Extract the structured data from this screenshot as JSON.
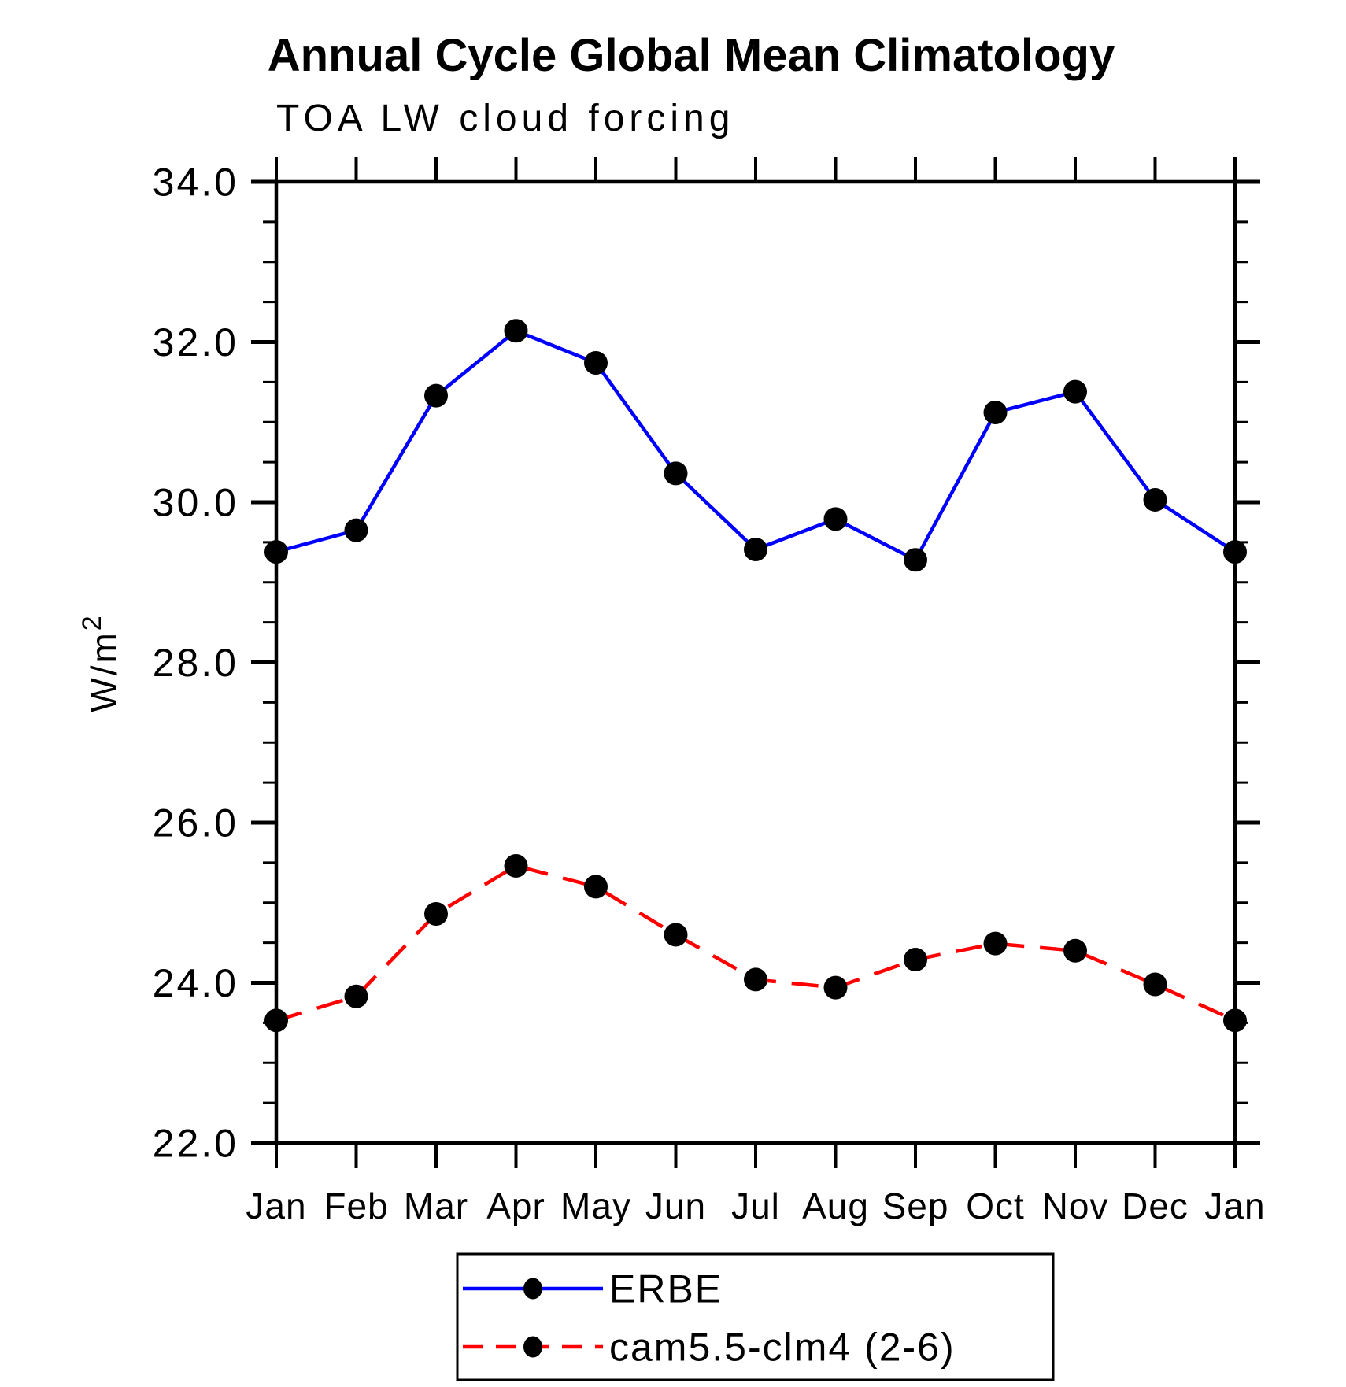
{
  "title": "Annual Cycle Global Mean Climatology",
  "subtitle": "TOA LW cloud forcing",
  "y_axis": {
    "label": "W/m",
    "label_exponent": "2",
    "tick_labels": [
      "22.0",
      "24.0",
      "26.0",
      "28.0",
      "30.0",
      "32.0",
      "34.0"
    ]
  },
  "x_axis": {
    "tick_labels": [
      "Jan",
      "Feb",
      "Mar",
      "Apr",
      "May",
      "Jun",
      "Jul",
      "Aug",
      "Sep",
      "Oct",
      "Nov",
      "Dec",
      "Jan"
    ]
  },
  "legend": {
    "entries": [
      {
        "label": "ERBE"
      },
      {
        "label": "cam5.5-clm4 (2-6)"
      }
    ]
  },
  "chart_data": {
    "type": "line",
    "title": "Annual Cycle Global Mean Climatology",
    "subtitle": "TOA LW cloud forcing",
    "ylabel": "W/m2",
    "xlabel": "",
    "ylim": [
      22.0,
      34.0
    ],
    "y_major_step": 2.0,
    "y_minor_step": 0.5,
    "grid": false,
    "legend_position": "bottom",
    "marker_color": "#000000",
    "axis_color": "#000000",
    "categories": [
      "Jan",
      "Feb",
      "Mar",
      "Apr",
      "May",
      "Jun",
      "Jul",
      "Aug",
      "Sep",
      "Oct",
      "Nov",
      "Dec",
      "Jan"
    ],
    "series": [
      {
        "name": "ERBE",
        "color": "#0000ff",
        "style": "solid",
        "marker": "filled-circle",
        "values": [
          29.38,
          29.65,
          31.33,
          32.14,
          31.74,
          30.36,
          29.41,
          29.79,
          29.28,
          31.12,
          31.38,
          30.03,
          29.38
        ]
      },
      {
        "name": "cam5.5-clm4 (2-6)",
        "color": "#ff0000",
        "style": "dashed",
        "marker": "filled-circle",
        "values": [
          23.53,
          23.83,
          24.86,
          25.46,
          25.2,
          24.6,
          24.04,
          23.94,
          24.29,
          24.49,
          24.4,
          23.98,
          23.53
        ]
      }
    ]
  }
}
